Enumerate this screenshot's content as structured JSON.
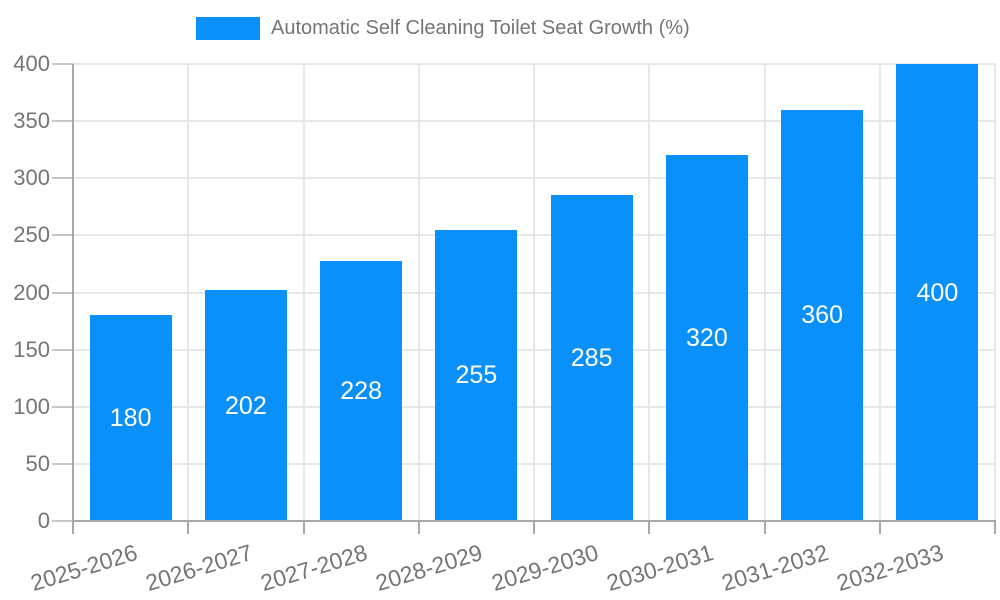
{
  "chart_data": {
    "type": "bar",
    "title": "Automatic Self Cleaning Toilet Seat Growth (%)",
    "categories": [
      "2025-2026",
      "2026-2027",
      "2027-2028",
      "2028-2029",
      "2029-2030",
      "2030-2031",
      "2031-2032",
      "2032-2033"
    ],
    "series": [
      {
        "name": "Automatic Self Cleaning Toilet Seat Growth (%)",
        "values": [
          180,
          202,
          228,
          255,
          285,
          320,
          360,
          400
        ],
        "color": "#0990fa"
      }
    ],
    "xlabel": "",
    "ylabel": "",
    "ylim": [
      0,
      400
    ],
    "yticks": [
      0,
      50,
      100,
      150,
      200,
      250,
      300,
      350,
      400
    ],
    "grid": true,
    "legend_position": "top-center",
    "value_label_style": "white, centered inside bar"
  },
  "colors": {
    "bar": "#0990fa",
    "background": "#ffffff",
    "grid_line": "#e7e7e7",
    "axis_line": "#a8a8a8",
    "tick_mark": "#c6c6c6",
    "label_text": "#757575",
    "value_label_text": "#ffffff"
  }
}
